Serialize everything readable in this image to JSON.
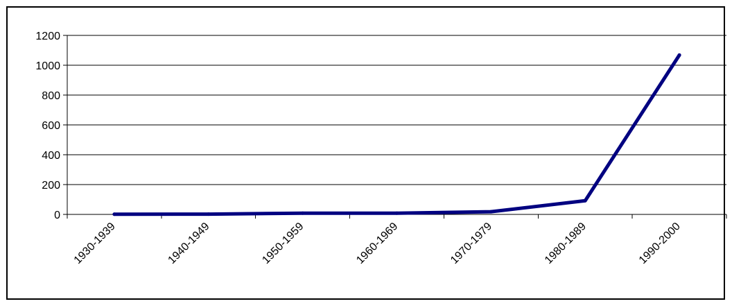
{
  "chart_data": {
    "type": "line",
    "categories": [
      "1930-1939",
      "1940-1949",
      "1950-1959",
      "1960-1969",
      "1970-1979",
      "1980-1989",
      "1990-2000"
    ],
    "series": [
      {
        "values": [
          1,
          2,
          8,
          8,
          18,
          92,
          1068
        ],
        "color": "#000080"
      }
    ],
    "ylim": [
      0,
      1200
    ],
    "yticks": [
      0,
      200,
      400,
      600,
      800,
      1000,
      1200
    ],
    "grid": "horizontal",
    "legend": "none"
  }
}
